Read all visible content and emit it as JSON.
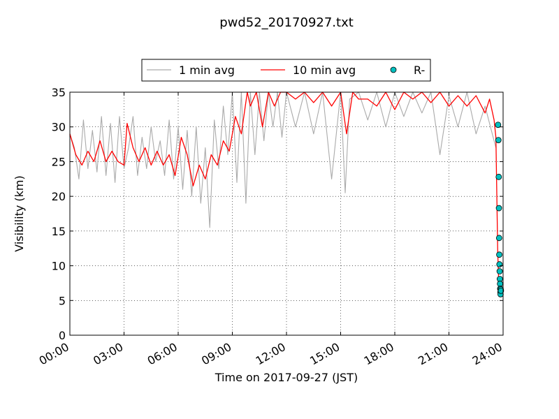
{
  "chart_data": {
    "type": "line",
    "title": "pwd52_20170927.txt",
    "xlabel": "Time on 2017-09-27 (JST)",
    "ylabel": "Visibility (km)",
    "xlim": [
      "00:00",
      "24:00"
    ],
    "ylim": [
      0,
      35
    ],
    "x_ticks": [
      "00:00",
      "03:00",
      "06:00",
      "09:00",
      "12:00",
      "15:00",
      "18:00",
      "21:00",
      "24:00"
    ],
    "y_ticks": [
      0,
      5,
      10,
      15,
      20,
      25,
      30,
      35
    ],
    "grid": true,
    "legend": {
      "placement": "top-center, above plot"
    },
    "series": [
      {
        "name": "1 min avg",
        "kind": "line",
        "color": "#aaaaaa",
        "x_hours": [
          0.0,
          0.25,
          0.5,
          0.75,
          1.0,
          1.25,
          1.5,
          1.75,
          2.0,
          2.25,
          2.5,
          2.75,
          3.0,
          3.25,
          3.5,
          3.75,
          4.0,
          4.25,
          4.5,
          4.75,
          5.0,
          5.25,
          5.5,
          5.75,
          6.0,
          6.25,
          6.5,
          6.75,
          7.0,
          7.25,
          7.5,
          7.75,
          8.0,
          8.25,
          8.5,
          8.75,
          9.0,
          9.25,
          9.5,
          9.75,
          10.0,
          10.25,
          10.5,
          10.75,
          11.0,
          11.25,
          11.5,
          11.75,
          12.0,
          12.5,
          13.0,
          13.5,
          14.0,
          14.5,
          15.0,
          15.25,
          15.5,
          16.0,
          16.5,
          17.0,
          17.5,
          18.0,
          18.5,
          19.0,
          19.5,
          20.0,
          20.5,
          21.0,
          21.5,
          22.0,
          22.5,
          23.0,
          23.25,
          23.5,
          23.6
        ],
        "values": [
          29,
          27,
          22.5,
          31,
          24,
          29.5,
          23.5,
          31.5,
          23,
          30.5,
          22,
          31.5,
          24,
          27,
          31.5,
          23,
          28.5,
          24,
          30,
          25,
          28,
          23,
          31,
          22.5,
          30,
          21,
          29.5,
          20,
          30,
          19,
          27,
          15.5,
          31,
          24,
          33,
          26,
          35,
          22,
          35,
          19,
          35,
          26,
          35,
          28,
          35,
          30,
          35,
          28.5,
          35,
          30,
          35,
          29,
          35,
          22.5,
          35,
          20.5,
          34,
          35,
          31,
          35,
          30,
          35,
          31.5,
          35,
          32,
          35,
          26,
          34.5,
          30,
          35,
          29,
          33,
          30.5,
          28,
          27
        ]
      },
      {
        "name": "10 min avg",
        "kind": "line",
        "color": "#ff0000",
        "x_hours": [
          0.0,
          0.33,
          0.67,
          1.0,
          1.33,
          1.67,
          2.0,
          2.33,
          2.67,
          3.0,
          3.17,
          3.5,
          3.83,
          4.17,
          4.5,
          4.83,
          5.17,
          5.5,
          5.83,
          6.17,
          6.5,
          6.83,
          7.17,
          7.5,
          7.83,
          8.17,
          8.5,
          8.83,
          9.17,
          9.5,
          9.83,
          10.0,
          10.33,
          10.67,
          11.0,
          11.33,
          11.67,
          12.0,
          12.5,
          13.0,
          13.5,
          14.0,
          14.5,
          15.0,
          15.33,
          15.67,
          16.0,
          16.5,
          17.0,
          17.5,
          18.0,
          18.5,
          19.0,
          19.5,
          20.0,
          20.5,
          21.0,
          21.5,
          22.0,
          22.5,
          23.0,
          23.25,
          23.5,
          23.6,
          23.7,
          23.78
        ],
        "values": [
          29,
          26,
          24.5,
          26.5,
          25,
          28,
          25,
          26.5,
          25,
          24.5,
          30.5,
          27,
          25,
          27,
          24.5,
          26.5,
          24.5,
          26,
          23,
          28.5,
          26,
          21.5,
          24.5,
          22.5,
          26,
          24.5,
          28,
          26.5,
          31.5,
          29,
          35,
          33,
          35,
          30,
          35,
          33,
          35,
          35,
          34,
          35,
          33.5,
          35,
          33,
          35,
          29,
          35,
          34,
          34,
          33,
          35,
          32.5,
          35,
          34,
          35,
          33.5,
          35,
          33,
          34.5,
          33,
          34.5,
          32,
          34,
          31,
          28.5,
          12,
          5.8
        ]
      },
      {
        "name": "R-",
        "kind": "scatter",
        "color": "#00c0c0",
        "x_hours": [
          23.72,
          23.74,
          23.76,
          23.77,
          23.78,
          23.79,
          23.8,
          23.81,
          23.82,
          23.83,
          23.84,
          23.85,
          23.86,
          23.87,
          23.88
        ],
        "values": [
          30.3,
          28.1,
          22.8,
          18.3,
          14.0,
          11.6,
          10.2,
          9.2,
          8.1,
          7.4,
          6.7,
          6.2,
          5.9,
          6.6,
          6.4
        ]
      }
    ]
  }
}
